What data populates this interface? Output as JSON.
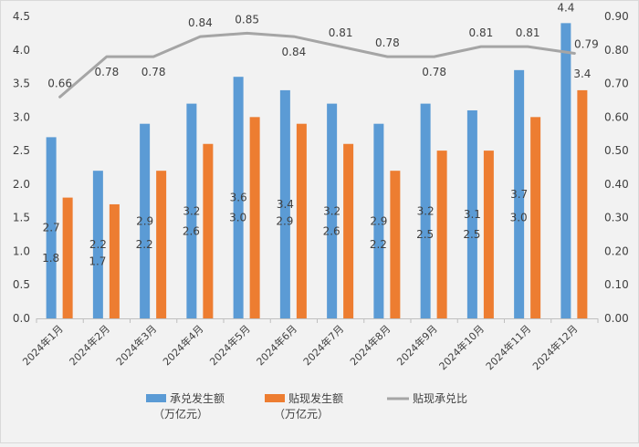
{
  "chart_data": {
    "type": "bar",
    "categories": [
      "2024年1月",
      "2024年2月",
      "2024年3月",
      "2024年4月",
      "2024年5月",
      "2024年6月",
      "2024年7月",
      "2024年8月",
      "2024年9月",
      "2024年10月",
      "2024年11月",
      "2024年12月"
    ],
    "series": [
      {
        "name": "承兑发生额（万亿元）",
        "legend_line1": "承兑发生额",
        "legend_line2": "（万亿元）",
        "type": "bar",
        "axis": "left",
        "color": "#5b9bd5",
        "values": [
          2.7,
          2.2,
          2.9,
          3.2,
          3.6,
          3.4,
          3.2,
          2.9,
          3.2,
          3.1,
          3.7,
          4.4
        ]
      },
      {
        "name": "贴现发生额（万亿元）",
        "legend_line1": "贴现发生额",
        "legend_line2": "（万亿元）",
        "type": "bar",
        "axis": "left",
        "color": "#ed7d31",
        "values": [
          1.8,
          1.7,
          2.2,
          2.6,
          3.0,
          2.9,
          2.6,
          2.2,
          2.5,
          2.5,
          3.0,
          3.4
        ]
      },
      {
        "name": "贴现承兑比",
        "legend_line1": "贴现承兑比",
        "legend_line2": "",
        "type": "line",
        "axis": "right",
        "color": "#a5a5a5",
        "values": [
          0.66,
          0.78,
          0.78,
          0.84,
          0.85,
          0.84,
          0.81,
          0.78,
          0.78,
          0.81,
          0.81,
          0.79
        ]
      }
    ],
    "left_axis": {
      "min": 0,
      "max": 4.5,
      "step": 0.5,
      "ticks": [
        "0.0",
        "0.5",
        "1.0",
        "1.5",
        "2.0",
        "2.5",
        "3.0",
        "3.5",
        "4.0",
        "4.5"
      ]
    },
    "right_axis": {
      "min": 0,
      "max": 0.9,
      "step": 0.1,
      "ticks": [
        "0.00",
        "0.10",
        "0.20",
        "0.30",
        "0.40",
        "0.50",
        "0.60",
        "0.70",
        "0.80",
        "0.90"
      ]
    },
    "grid": false,
    "legend_position": "bottom",
    "title": "",
    "xlabel": "",
    "ylabel": ""
  }
}
